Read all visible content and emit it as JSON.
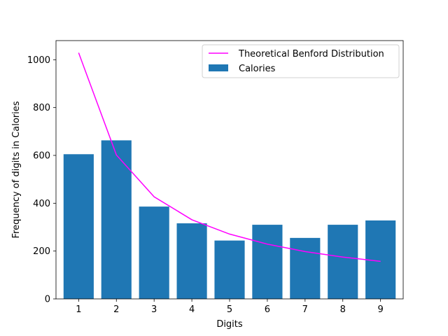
{
  "chart_data": {
    "type": "bar",
    "categories": [
      "1",
      "2",
      "3",
      "4",
      "5",
      "6",
      "7",
      "8",
      "9"
    ],
    "x": [
      1,
      2,
      3,
      4,
      5,
      6,
      7,
      8,
      9
    ],
    "series": [
      {
        "name": "Calories",
        "type": "bar",
        "color": "#1f77b4",
        "values": [
          605,
          663,
          386,
          316,
          244,
          310,
          255,
          310,
          328
        ]
      },
      {
        "name": "Theoretical Benford Distribution",
        "type": "line",
        "color": "#ff00ff",
        "values": [
          1029,
          602,
          427,
          331,
          271,
          229,
          198,
          175,
          157
        ]
      }
    ],
    "xlabel": "Digits",
    "ylabel": "Frequency of digits in Calories",
    "ylim": [
      0,
      1080
    ],
    "yticks": [
      0,
      200,
      400,
      600,
      800,
      1000
    ],
    "legend": "top-right",
    "grid": false
  }
}
